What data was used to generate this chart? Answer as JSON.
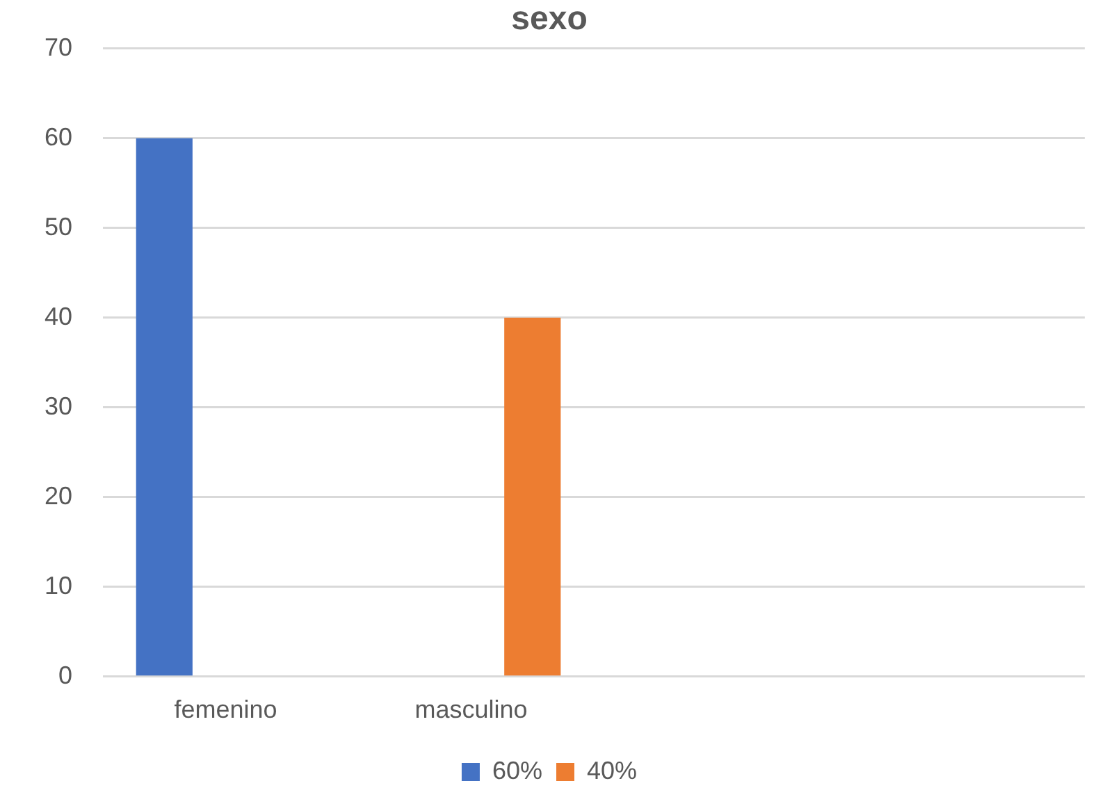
{
  "chart_data": {
    "type": "bar",
    "title": "sexo",
    "categories": [
      "femenino",
      "masculino",
      null,
      null
    ],
    "series": [
      {
        "name": "60%",
        "color": "#4472c4",
        "values": [
          60,
          null,
          null,
          null
        ]
      },
      {
        "name": "40%",
        "color": "#ed7d31",
        "values": [
          null,
          40,
          null,
          null
        ]
      }
    ],
    "ylim": [
      0,
      70
    ],
    "yticks": [
      0,
      10,
      20,
      30,
      40,
      50,
      60,
      70
    ],
    "grid": "y",
    "legend": "bottom"
  }
}
